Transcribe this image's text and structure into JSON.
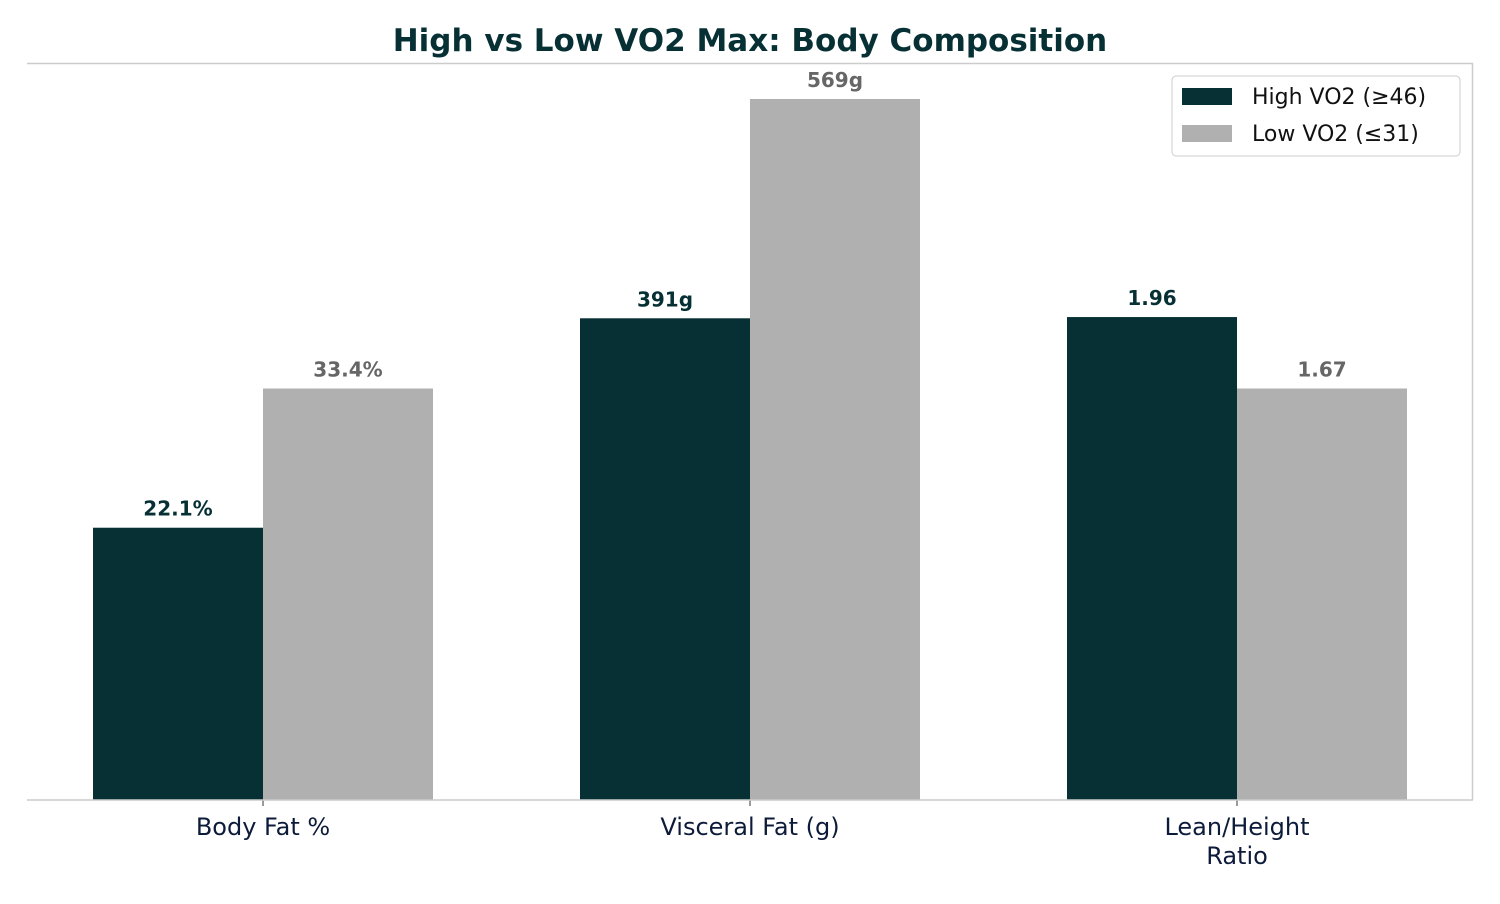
{
  "chart_data": {
    "type": "bar",
    "title": "High vs Low VO2 Max: Body Composition",
    "categories": [
      "Body Fat %",
      "Visceral Fat (g)",
      "Lean/Height\nRatio"
    ],
    "series": [
      {
        "name": "High VO2 (≥46)",
        "color": "#073035",
        "values": [
          22.1,
          391,
          1.96
        ],
        "labels": [
          "22.1%",
          "391g",
          "1.96"
        ],
        "label_color": "#073035"
      },
      {
        "name": "Low VO2 (≤31)",
        "color": "#b0b0b0",
        "values": [
          33.4,
          569,
          1.67
        ],
        "labels": [
          "33.4%",
          "569g",
          "1.67"
        ],
        "label_color": "#666666"
      }
    ],
    "xlabel": "",
    "ylabel": "",
    "y_ticks_shown": false,
    "grid": false,
    "legend": "top-right"
  }
}
